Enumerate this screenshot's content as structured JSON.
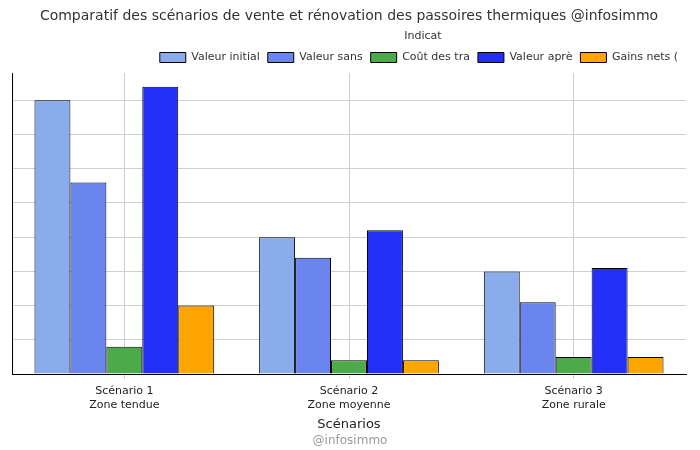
{
  "chart_data": {
    "type": "bar",
    "title": "Comparatif des scénarios de vente et rénovation des passoires thermiques @infosimmo",
    "x_label": "Scénarios",
    "annotations": [
      "@infosimmo"
    ],
    "categories": [
      [
        "Scénario 1",
        "Zone tendue"
      ],
      [
        "Scénario 2",
        "Zone moyenne"
      ],
      [
        "Scénario 3",
        "Zone rurale"
      ]
    ],
    "legend_title": "Indicat",
    "series": [
      {
        "name": "Valeur initial",
        "color": "#8aacec",
        "values": [
          400000,
          200000,
          150000
        ]
      },
      {
        "name": "Valeur sans",
        "color": "#6a86ee",
        "values": [
          280000,
          170000,
          105000
        ]
      },
      {
        "name": "Coût des tra",
        "color": "#4caa4a",
        "values": [
          40000,
          20000,
          25000
        ]
      },
      {
        "name": "Valeur aprè",
        "color": "#2430fa",
        "values": [
          420000,
          210000,
          155000
        ]
      },
      {
        "name": "Gains nets (",
        "color": "#ffa500",
        "values": [
          100000,
          20000,
          25000
        ]
      }
    ],
    "ylim": [
      0,
      440000
    ],
    "yticks": [
      0,
      50000,
      100000,
      150000,
      200000,
      250000,
      300000,
      350000,
      400000
    ],
    "grid": true,
    "legend": "upper right",
    "tick_labels": "x"
  }
}
